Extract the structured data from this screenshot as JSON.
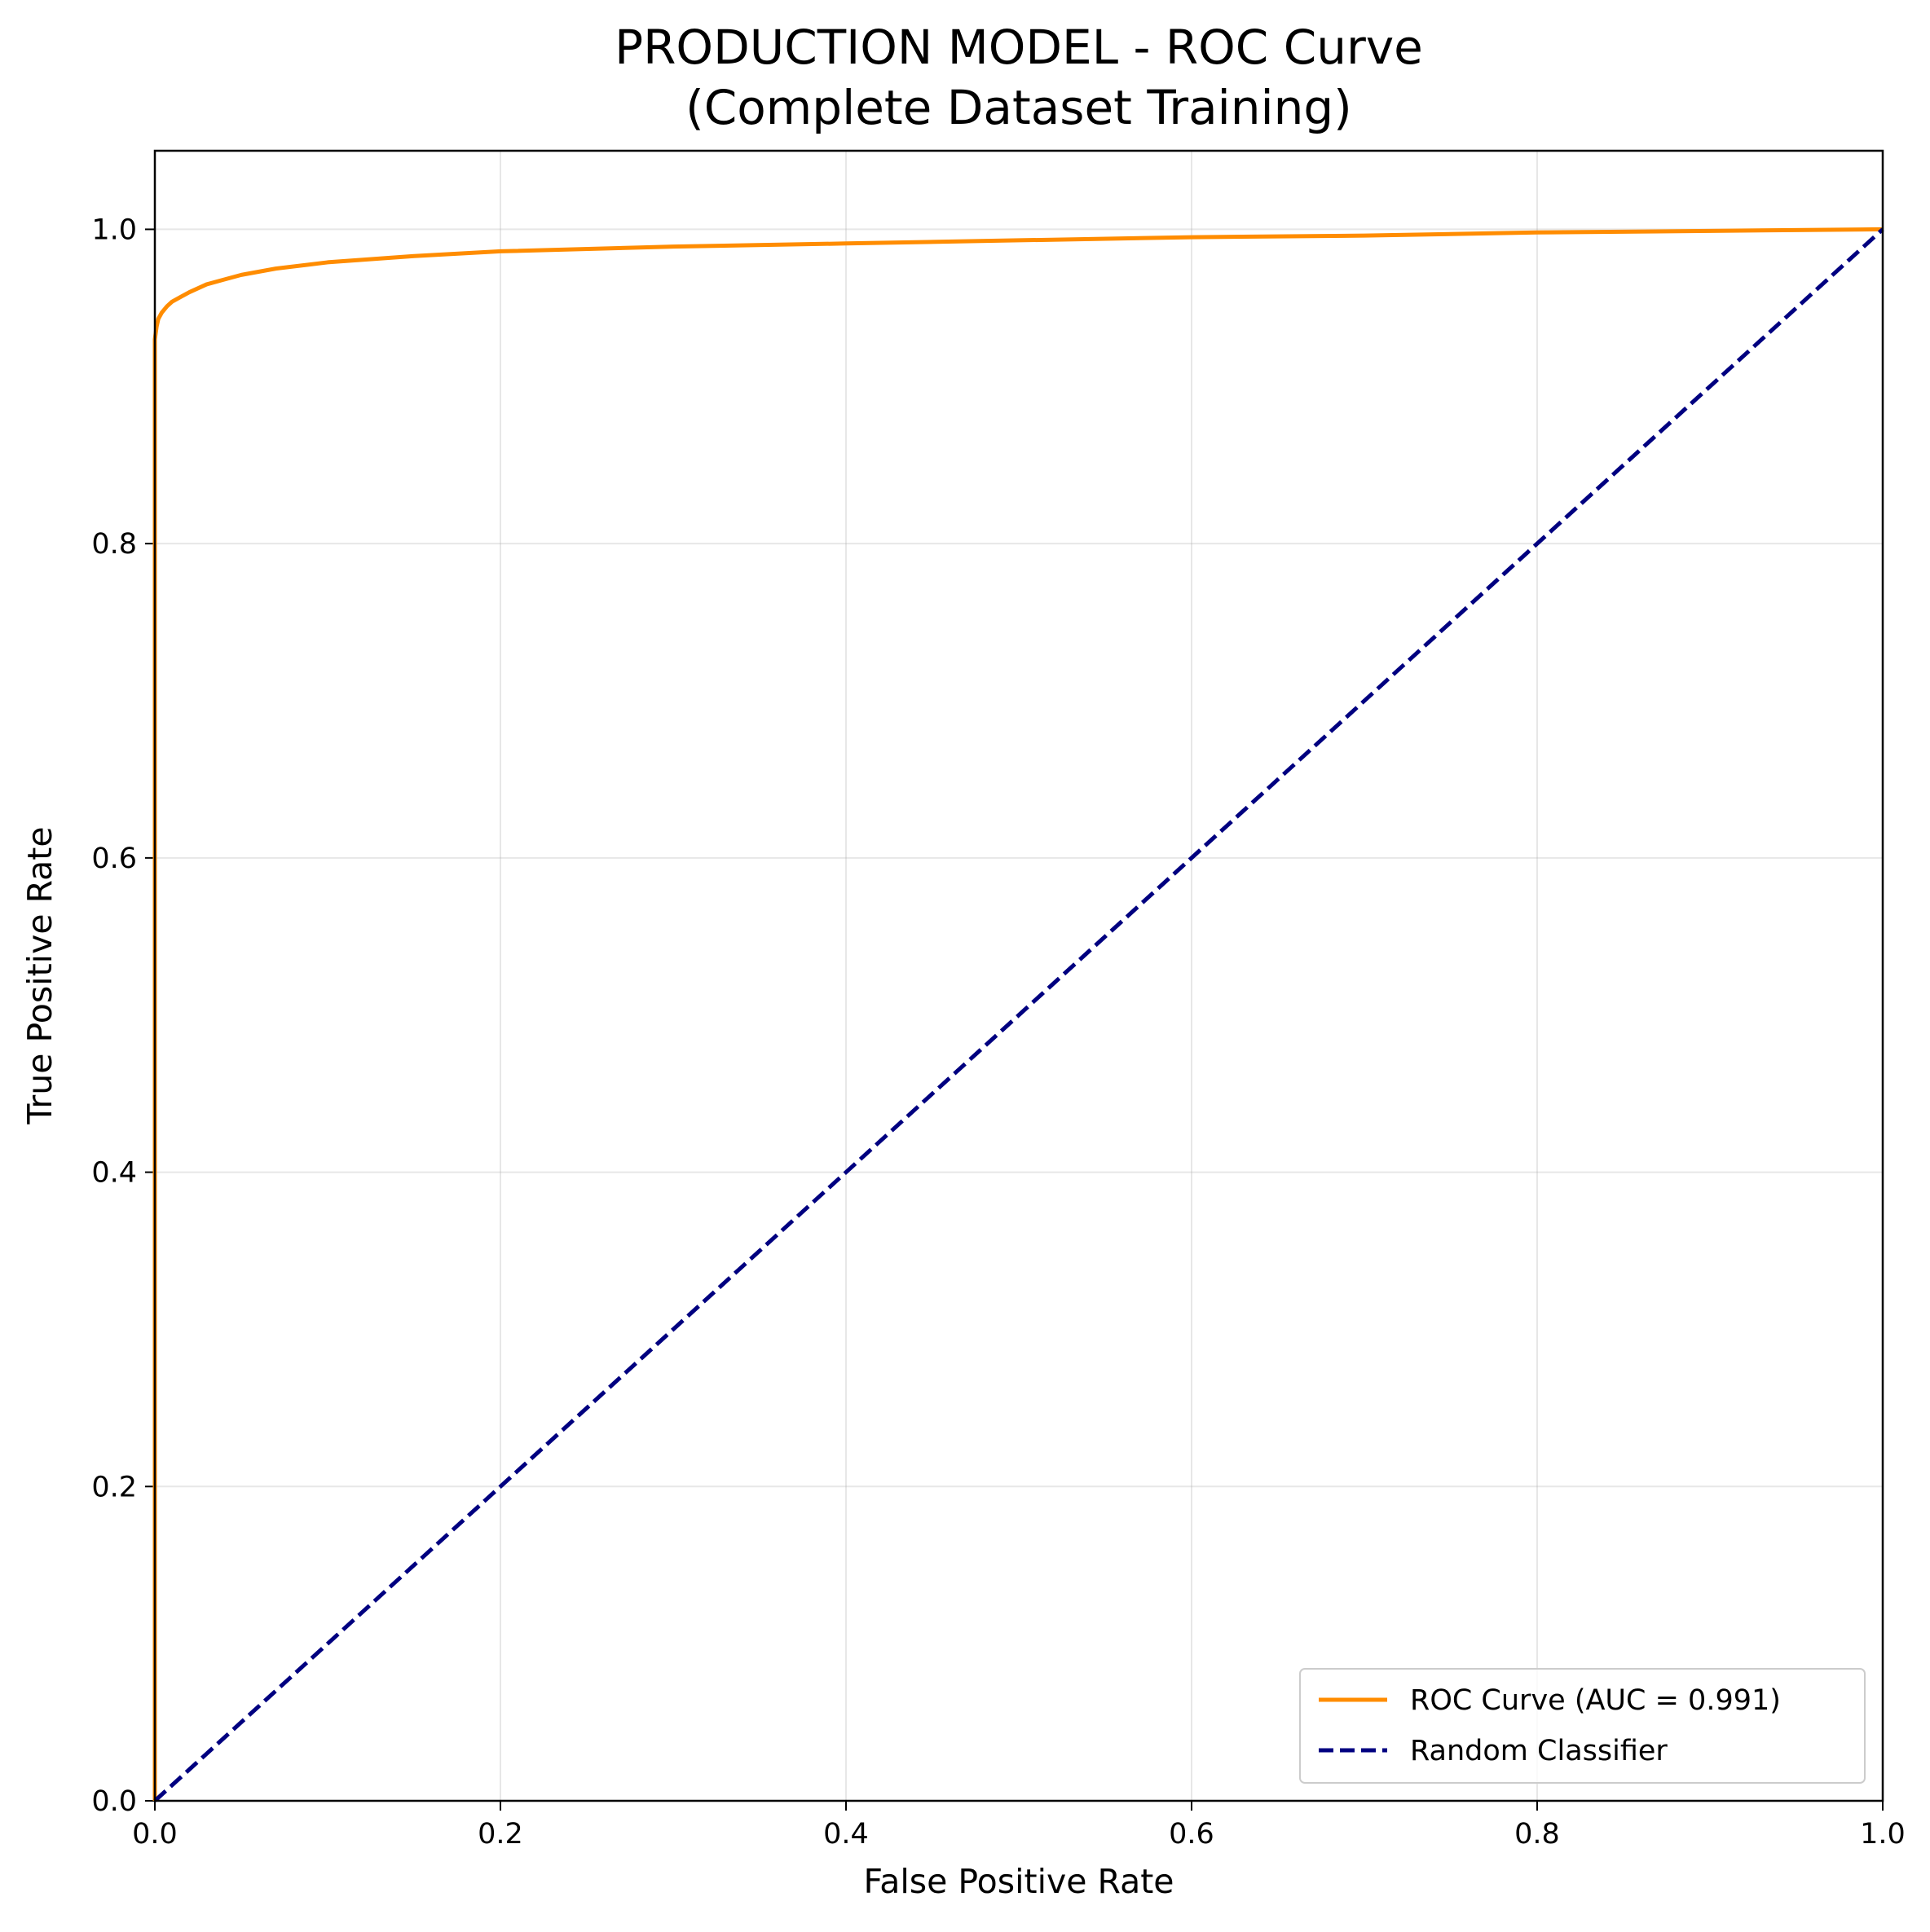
{
  "chart_data": {
    "type": "line",
    "title_lines": [
      "PRODUCTION MODEL - ROC Curve",
      "(Complete Dataset Training)"
    ],
    "xlabel": "False Positive Rate",
    "ylabel": "True Positive Rate",
    "xlim": [
      0.0,
      1.0
    ],
    "ylim": [
      0.0,
      1.05
    ],
    "xticks": [
      0.0,
      0.2,
      0.4,
      0.6,
      0.8,
      1.0
    ],
    "yticks": [
      0.0,
      0.2,
      0.4,
      0.6,
      0.8,
      1.0
    ],
    "xtick_labels": [
      "0.0",
      "0.2",
      "0.4",
      "0.6",
      "0.8",
      "1.0"
    ],
    "ytick_labels": [
      "0.0",
      "0.2",
      "0.4",
      "0.6",
      "0.8",
      "1.0"
    ],
    "grid": true,
    "legend_position": "lower-right",
    "series": [
      {
        "name": "ROC Curve (AUC = 0.991)",
        "color": "#ff8c00",
        "style": "solid",
        "x": [
          0.0,
          0.0,
          0.0,
          0.0,
          0.001,
          0.002,
          0.004,
          0.007,
          0.01,
          0.015,
          0.02,
          0.03,
          0.04,
          0.05,
          0.07,
          0.1,
          0.15,
          0.2,
          0.3,
          0.4,
          0.5,
          0.6,
          0.7,
          0.8,
          0.9,
          1.0
        ],
        "y": [
          0.0,
          0.5,
          0.9,
          0.93,
          0.938,
          0.943,
          0.947,
          0.951,
          0.954,
          0.957,
          0.96,
          0.965,
          0.968,
          0.971,
          0.975,
          0.979,
          0.983,
          0.986,
          0.989,
          0.991,
          0.993,
          0.995,
          0.996,
          0.998,
          0.999,
          1.0
        ]
      },
      {
        "name": "Random Classifier",
        "color": "#000080",
        "style": "dashed",
        "x": [
          0.0,
          1.0
        ],
        "y": [
          0.0,
          1.0
        ]
      }
    ]
  }
}
